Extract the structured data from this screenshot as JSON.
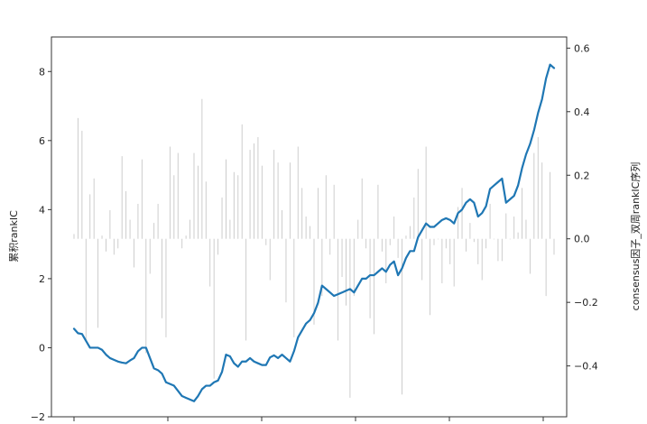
{
  "chart_data": {
    "type": "bar+line",
    "title": "",
    "xlabel": "",
    "ylabel_left": "累积rankIC",
    "ylabel_right": "consensus因子_双周rankIC序列",
    "y_left": {
      "lim": [
        -2,
        9
      ],
      "ticks": [
        -2,
        0,
        2,
        4,
        6,
        8
      ]
    },
    "y_right": {
      "lim": [
        -0.56,
        0.635
      ],
      "ticks": [
        -0.4,
        -0.2,
        0.0,
        0.2,
        0.4,
        0.6
      ],
      "tick_labels": [
        "−0.4",
        "−0.2",
        "0.0",
        "0.2",
        "0.4",
        "0.6"
      ]
    },
    "x_count": 121,
    "grid": false,
    "legend": "none",
    "colors": {
      "line": "#1f77b4",
      "bars": "#c8c8c8",
      "axes": "#333333"
    },
    "series": [
      {
        "kind": "bar",
        "axis": "right",
        "values": [
          0.015,
          0.38,
          0.34,
          -0.32,
          0.14,
          0.19,
          -0.28,
          0.01,
          -0.04,
          0.09,
          -0.05,
          -0.03,
          0.26,
          0.15,
          0.06,
          -0.09,
          0.11,
          0.25,
          -0.36,
          -0.11,
          0.05,
          0.11,
          -0.25,
          -0.31,
          0.29,
          0.2,
          0.27,
          -0.03,
          0.01,
          0.06,
          0.27,
          0.23,
          0.44,
          0.18,
          -0.15,
          -0.44,
          -0.05,
          0.13,
          0.25,
          0.06,
          0.21,
          0.2,
          0.36,
          -0.32,
          0.28,
          0.3,
          0.32,
          0.23,
          -0.02,
          -0.13,
          0.28,
          0.24,
          0.09,
          -0.2,
          0.24,
          -0.31,
          0.29,
          0.16,
          0.07,
          0.04,
          -0.27,
          0.16,
          -0.18,
          0.2,
          -0.05,
          0.17,
          -0.32,
          -0.12,
          -0.21,
          -0.5,
          -0.18,
          0.06,
          0.19,
          -0.03,
          -0.25,
          -0.3,
          0.17,
          -0.04,
          -0.14,
          -0.02,
          0.07,
          -0.06,
          -0.49,
          0.01,
          0.04,
          0.13,
          0.22,
          -0.13,
          0.29,
          -0.24,
          -0.02,
          0.0,
          -0.14,
          -0.03,
          -0.08,
          -0.15,
          0.1,
          0.16,
          -0.04,
          0.05,
          -0.01,
          -0.08,
          -0.13,
          -0.03,
          0.11,
          0.0,
          -0.07,
          -0.07,
          0.08,
          0.0,
          0.07,
          0.02,
          0.16,
          0.06,
          -0.11,
          0.27,
          0.32,
          0.24,
          -0.18,
          0.21,
          -0.05
        ]
      },
      {
        "kind": "line",
        "axis": "left",
        "values": [
          0.55,
          0.42,
          0.4,
          0.2,
          0.0,
          0.0,
          0.0,
          -0.06,
          -0.2,
          -0.3,
          -0.35,
          -0.4,
          -0.43,
          -0.45,
          -0.37,
          -0.3,
          -0.1,
          0.0,
          0.0,
          -0.3,
          -0.6,
          -0.65,
          -0.75,
          -1.0,
          -1.05,
          -1.1,
          -1.25,
          -1.4,
          -1.45,
          -1.5,
          -1.55,
          -1.4,
          -1.2,
          -1.1,
          -1.1,
          -1.0,
          -0.95,
          -0.7,
          -0.2,
          -0.25,
          -0.45,
          -0.55,
          -0.4,
          -0.4,
          -0.3,
          -0.4,
          -0.45,
          -0.5,
          -0.5,
          -0.28,
          -0.22,
          -0.3,
          -0.2,
          -0.3,
          -0.4,
          -0.1,
          0.3,
          0.5,
          0.7,
          0.8,
          1.0,
          1.3,
          1.8,
          1.7,
          1.6,
          1.5,
          1.55,
          1.6,
          1.65,
          1.7,
          1.6,
          1.8,
          2.0,
          2.0,
          2.1,
          2.1,
          2.2,
          2.3,
          2.2,
          2.4,
          2.5,
          2.1,
          2.3,
          2.6,
          2.8,
          2.8,
          3.2,
          3.4,
          3.6,
          3.5,
          3.5,
          3.6,
          3.7,
          3.75,
          3.7,
          3.6,
          3.9,
          4.0,
          4.2,
          4.3,
          4.2,
          3.8,
          3.9,
          4.1,
          4.6,
          4.7,
          4.8,
          4.9,
          4.2,
          4.3,
          4.4,
          4.7,
          5.2,
          5.6,
          5.9,
          6.3,
          6.8,
          7.2,
          7.8,
          8.2,
          8.1
        ]
      }
    ]
  }
}
